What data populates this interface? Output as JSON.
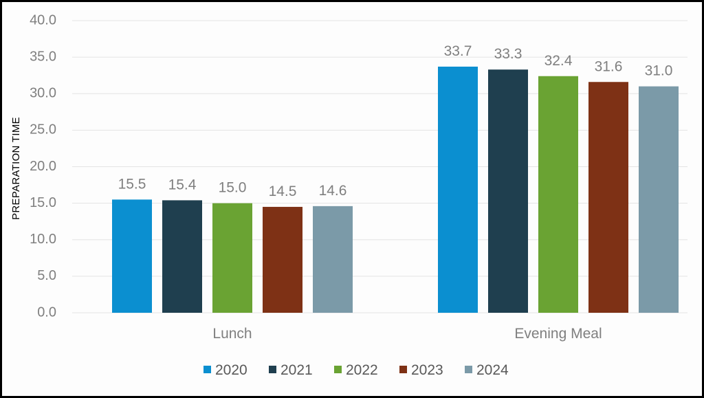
{
  "chart_data": {
    "type": "bar",
    "title": "",
    "xlabel": "",
    "ylabel": "PREPARATION TIME",
    "ylim": [
      0,
      40
    ],
    "yticks": [
      "0.0",
      "5.0",
      "10.0",
      "15.0",
      "20.0",
      "25.0",
      "30.0",
      "35.0",
      "40.0"
    ],
    "grid": true,
    "legend_position": "bottom",
    "categories": [
      "Lunch",
      "Evening Meal"
    ],
    "series": [
      {
        "name": "2020",
        "color": "#0b8fd0",
        "values": [
          15.5,
          33.7
        ],
        "labels": [
          "15.5",
          "33.7"
        ]
      },
      {
        "name": "2021",
        "color": "#1f3f4f",
        "values": [
          15.4,
          33.3
        ],
        "labels": [
          "15.4",
          "33.3"
        ]
      },
      {
        "name": "2022",
        "color": "#6aa333",
        "values": [
          15.0,
          32.4
        ],
        "labels": [
          "15.0",
          "32.4"
        ]
      },
      {
        "name": "2023",
        "color": "#7e3115",
        "values": [
          14.5,
          31.6
        ],
        "labels": [
          "14.5",
          "31.6"
        ]
      },
      {
        "name": "2024",
        "color": "#7b9aa8",
        "values": [
          14.6,
          31.0
        ],
        "labels": [
          "14.6",
          "31.0"
        ]
      }
    ]
  }
}
